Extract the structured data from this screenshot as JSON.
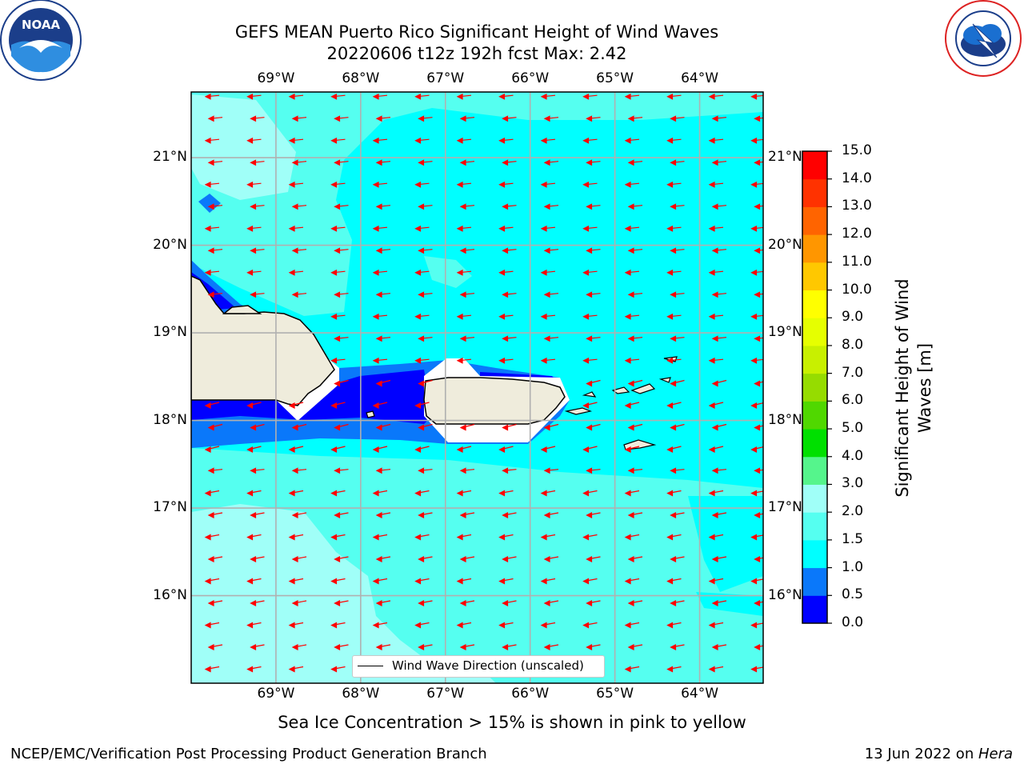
{
  "title": {
    "line1": "GEFS MEAN Puerto Rico Significant Height of Wind Waves",
    "line2": "20220606 t12z 192h fcst   Max: 2.42"
  },
  "map": {
    "lon_labels": [
      "69°W",
      "68°W",
      "67°W",
      "66°W",
      "65°W",
      "64°W"
    ],
    "lat_labels": [
      "21°N",
      "20°N",
      "19°N",
      "18°N",
      "17°N",
      "16°N"
    ],
    "extent": {
      "lon_min": -70.0,
      "lon_max": -63.25,
      "lat_min": 15.0,
      "lat_max": 21.75
    },
    "legend_label": "Wind Wave Direction (unscaled)",
    "arrow_color": "#ff0000",
    "land_color": "#efecdc"
  },
  "colorbar": {
    "label": "Significant Height of Wind Waves [m]",
    "ticks": [
      "0.0",
      "0.5",
      "1.0",
      "1.5",
      "2.0",
      "3.0",
      "4.0",
      "5.0",
      "6.0",
      "7.0",
      "8.0",
      "9.0",
      "10.0",
      "11.0",
      "12.0",
      "13.0",
      "14.0",
      "15.0"
    ],
    "colors": [
      "#0000ff",
      "#0a78fa",
      "#00ffff",
      "#55fff0",
      "#a0fff8",
      "#55f58c",
      "#00e000",
      "#50d800",
      "#96dc00",
      "#c8f000",
      "#e6ff00",
      "#ffff00",
      "#ffc800",
      "#ff9600",
      "#ff6400",
      "#ff3200",
      "#ff0000"
    ]
  },
  "note": "Sea Ice Concentration > 15% is shown in pink to yellow",
  "footer": {
    "left": "NCEP/EMC/Verification Post Processing Product Generation Branch",
    "right_date": "13 Jun 2022 on ",
    "right_machine": "Hera"
  },
  "logos": {
    "noaa_text": "NOAA",
    "noaa_ring": "NATIONAL OCEANIC AND ATMOSPHERIC ADMINISTRATION · U.S. DEPARTMENT OF COMMERCE",
    "nws_ring": "NATIONAL WEATHER SERVICE"
  }
}
